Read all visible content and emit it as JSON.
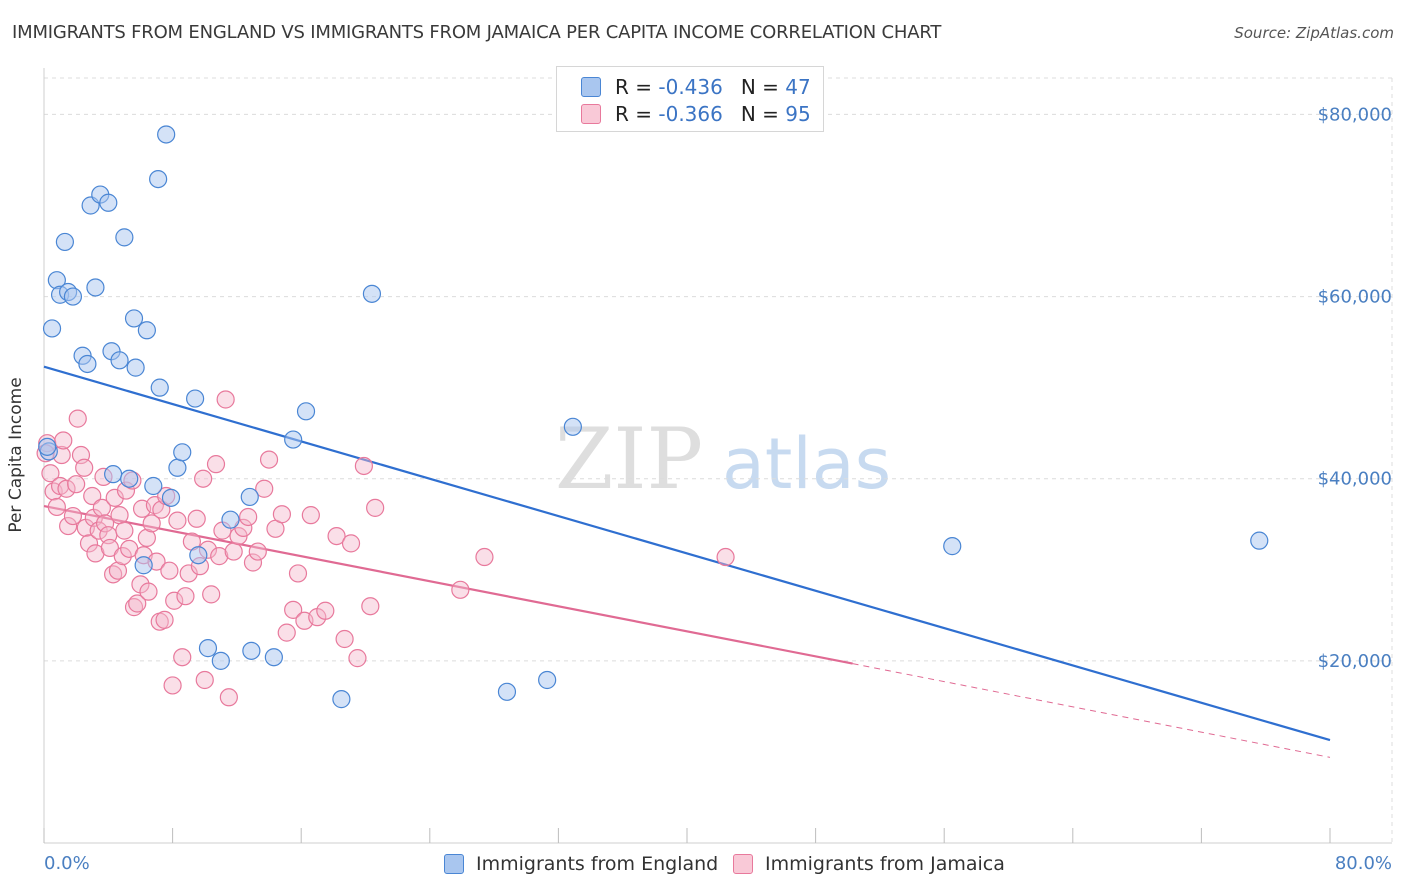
{
  "title": "IMMIGRANTS FROM ENGLAND VS IMMIGRANTS FROM JAMAICA PER CAPITA INCOME CORRELATION CHART",
  "source": "Source: ZipAtlas.com",
  "watermark": {
    "zip": "ZIP",
    "atlas": "atlas"
  },
  "legend_top": {
    "england": {
      "r_label": "R =",
      "r_value": "-0.436",
      "n_label": "N =",
      "n_value": "47"
    },
    "jamaica": {
      "r_label": "R =",
      "r_value": "-0.366",
      "n_label": "N =",
      "n_value": "95"
    }
  },
  "colors": {
    "england_fill": "#a9c6ef",
    "england_stroke": "#4a86d4",
    "england_line": "#2f6fd0",
    "jamaica_fill": "#f5b8cb",
    "jamaica_stroke": "#e8799c",
    "jamaica_line": "#e06a93",
    "grid": "#dcdcdc",
    "tick_text": "#4a7fc1"
  },
  "chart_data": {
    "type": "scatter",
    "title": "IMMIGRANTS FROM ENGLAND VS IMMIGRANTS FROM JAMAICA PER CAPITA INCOME CORRELATION CHART",
    "xlabel": "",
    "ylabel": "Per Capita Income",
    "xlim": [
      0,
      80
    ],
    "ylim": [
      0,
      84000
    ],
    "x_tick_labels": [
      "0.0%",
      "80.0%"
    ],
    "y_ticks": [
      20000,
      40000,
      60000,
      80000
    ],
    "y_tick_labels": [
      "$20,000",
      "$40,000",
      "$60,000",
      "$80,000"
    ],
    "grid": true,
    "legend_position": "bottom",
    "series": [
      {
        "name": "Immigrants from England",
        "trend": {
          "x": [
            0,
            80
          ],
          "y": [
            52300,
            11300
          ],
          "style": "solid"
        },
        "points": [
          [
            0.3,
            43000
          ],
          [
            0.5,
            56500
          ],
          [
            0.8,
            61800
          ],
          [
            1.0,
            60200
          ],
          [
            1.3,
            66000
          ],
          [
            1.5,
            60500
          ],
          [
            1.8,
            60000
          ],
          [
            2.4,
            53500
          ],
          [
            2.7,
            52600
          ],
          [
            2.9,
            70000
          ],
          [
            3.2,
            61000
          ],
          [
            3.5,
            71200
          ],
          [
            4.0,
            70300
          ],
          [
            4.2,
            54000
          ],
          [
            4.3,
            40500
          ],
          [
            4.7,
            53000
          ],
          [
            5.0,
            66500
          ],
          [
            5.3,
            40000
          ],
          [
            5.6,
            57600
          ],
          [
            5.7,
            52200
          ],
          [
            6.2,
            30500
          ],
          [
            6.4,
            56300
          ],
          [
            6.8,
            39200
          ],
          [
            7.1,
            72900
          ],
          [
            7.2,
            50000
          ],
          [
            7.6,
            77800
          ],
          [
            7.9,
            37900
          ],
          [
            8.3,
            41200
          ],
          [
            8.6,
            42900
          ],
          [
            9.4,
            48800
          ],
          [
            9.6,
            31600
          ],
          [
            10.2,
            21400
          ],
          [
            11.0,
            20000
          ],
          [
            11.6,
            35500
          ],
          [
            12.8,
            38000
          ],
          [
            12.9,
            21100
          ],
          [
            14.3,
            20400
          ],
          [
            15.5,
            44300
          ],
          [
            16.3,
            47400
          ],
          [
            18.5,
            15800
          ],
          [
            20.4,
            60300
          ],
          [
            28.8,
            16600
          ],
          [
            31.3,
            17900
          ],
          [
            32.9,
            45700
          ],
          [
            56.5,
            32600
          ],
          [
            75.6,
            33200
          ],
          [
            0.2,
            43500
          ]
        ]
      },
      {
        "name": "Immigrants from Jamaica",
        "trend": {
          "x": [
            0,
            50.3
          ],
          "y": [
            37000,
            19700
          ],
          "style": "solid",
          "dashed_extension": {
            "x": [
              50.3,
              80
            ],
            "y": [
              19700,
              9400
            ]
          }
        },
        "points": [
          [
            0.2,
            43900
          ],
          [
            0.4,
            40600
          ],
          [
            0.6,
            38600
          ],
          [
            0.8,
            36900
          ],
          [
            1.0,
            39200
          ],
          [
            1.1,
            42600
          ],
          [
            1.2,
            44200
          ],
          [
            1.4,
            38900
          ],
          [
            1.5,
            34800
          ],
          [
            1.8,
            35900
          ],
          [
            2.0,
            39400
          ],
          [
            2.1,
            46600
          ],
          [
            2.3,
            42600
          ],
          [
            2.5,
            41200
          ],
          [
            2.6,
            34600
          ],
          [
            2.8,
            32900
          ],
          [
            3.0,
            38100
          ],
          [
            3.1,
            35700
          ],
          [
            3.2,
            31800
          ],
          [
            3.4,
            34300
          ],
          [
            3.6,
            36800
          ],
          [
            3.7,
            40200
          ],
          [
            3.8,
            35100
          ],
          [
            4.0,
            33800
          ],
          [
            4.1,
            32400
          ],
          [
            4.3,
            29500
          ],
          [
            4.4,
            37900
          ],
          [
            4.6,
            29900
          ],
          [
            4.7,
            36000
          ],
          [
            4.9,
            31500
          ],
          [
            5.0,
            34300
          ],
          [
            5.1,
            38700
          ],
          [
            5.3,
            32300
          ],
          [
            5.5,
            39800
          ],
          [
            5.6,
            25900
          ],
          [
            5.8,
            26300
          ],
          [
            6.0,
            28400
          ],
          [
            6.1,
            36700
          ],
          [
            6.2,
            31600
          ],
          [
            6.4,
            33500
          ],
          [
            6.5,
            27600
          ],
          [
            6.7,
            35100
          ],
          [
            6.9,
            37100
          ],
          [
            7.0,
            30900
          ],
          [
            7.2,
            24300
          ],
          [
            7.3,
            36600
          ],
          [
            7.5,
            24500
          ],
          [
            7.6,
            38100
          ],
          [
            7.8,
            29900
          ],
          [
            8.0,
            17300
          ],
          [
            8.1,
            26600
          ],
          [
            8.3,
            35400
          ],
          [
            8.6,
            20400
          ],
          [
            8.8,
            27100
          ],
          [
            9.0,
            29600
          ],
          [
            9.2,
            33100
          ],
          [
            9.5,
            35600
          ],
          [
            9.7,
            30400
          ],
          [
            9.9,
            40000
          ],
          [
            10.0,
            17900
          ],
          [
            10.2,
            32200
          ],
          [
            10.4,
            27300
          ],
          [
            10.7,
            41600
          ],
          [
            10.9,
            31500
          ],
          [
            11.1,
            34300
          ],
          [
            11.3,
            48700
          ],
          [
            11.5,
            16000
          ],
          [
            11.8,
            32000
          ],
          [
            12.1,
            33700
          ],
          [
            12.4,
            34600
          ],
          [
            12.7,
            35800
          ],
          [
            13.0,
            30800
          ],
          [
            13.3,
            32000
          ],
          [
            13.7,
            38900
          ],
          [
            14.0,
            42100
          ],
          [
            14.4,
            34500
          ],
          [
            14.8,
            36100
          ],
          [
            15.1,
            23100
          ],
          [
            15.5,
            25600
          ],
          [
            15.8,
            29600
          ],
          [
            16.2,
            24400
          ],
          [
            16.6,
            36000
          ],
          [
            17.0,
            24800
          ],
          [
            17.5,
            25500
          ],
          [
            18.2,
            33700
          ],
          [
            18.7,
            22400
          ],
          [
            19.1,
            32900
          ],
          [
            19.5,
            20300
          ],
          [
            19.9,
            41400
          ],
          [
            20.3,
            26000
          ],
          [
            20.6,
            36800
          ],
          [
            25.9,
            27800
          ],
          [
            27.4,
            31400
          ],
          [
            42.4,
            31400
          ],
          [
            0.1,
            42800
          ]
        ]
      }
    ]
  },
  "legend_bottom": {
    "england_label": "Immigrants from England",
    "jamaica_label": "Immigrants from Jamaica"
  }
}
